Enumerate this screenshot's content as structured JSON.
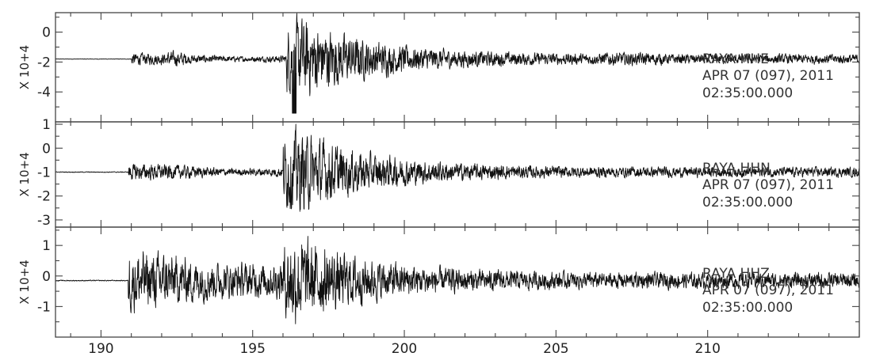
{
  "chart_data": {
    "type": "line",
    "xlim": [
      188.5,
      215
    ],
    "xticks": [
      190,
      195,
      200,
      205,
      210
    ],
    "xtick_labels": [
      "190",
      "195",
      "200",
      "205",
      "210"
    ],
    "panels": [
      {
        "channel": "HHE",
        "ylabel": "X 10+4",
        "ylim": [
          -6,
          1.3
        ],
        "yticks": [
          0,
          -2,
          -4
        ],
        "ytick_labels": [
          "0",
          "-2",
          "-4"
        ],
        "annotation": {
          "station": "RAYA   HHE",
          "date": "APR 07 (097), 2011",
          "time": "02:35:00.000"
        },
        "baseline": -1.8,
        "p_onset_s": 191.0,
        "s_onset_s": 196.1,
        "peak_amplitude": 2.9,
        "p_amplitude": 0.35
      },
      {
        "channel": "HHN",
        "ylabel": "X 10+4",
        "ylim": [
          -3.3,
          1.1
        ],
        "yticks": [
          1,
          0,
          -1,
          -2,
          -3
        ],
        "ytick_labels": [
          "1",
          "0",
          "-1",
          "-2",
          "-3"
        ],
        "annotation": {
          "station": "RAYA   HHN",
          "date": "APR 07 (097), 2011",
          "time": "02:35:00.000"
        },
        "baseline": -1.0,
        "p_onset_s": 190.9,
        "s_onset_s": 196.0,
        "peak_amplitude": 1.85,
        "p_amplitude": 0.3
      },
      {
        "channel": "HHZ",
        "ylabel": "X 10+4",
        "ylim": [
          -2.0,
          1.6
        ],
        "yticks": [
          1,
          0,
          -1
        ],
        "ytick_labels": [
          "1",
          "0",
          "-1"
        ],
        "annotation": {
          "station": "RAYA   HHZ",
          "date": "APR 07 (097), 2011",
          "time": "02:35:00.000"
        },
        "baseline": -0.15,
        "p_onset_s": 190.9,
        "s_onset_s": 196.0,
        "peak_amplitude": 1.5,
        "p_amplitude": 0.9
      }
    ]
  }
}
